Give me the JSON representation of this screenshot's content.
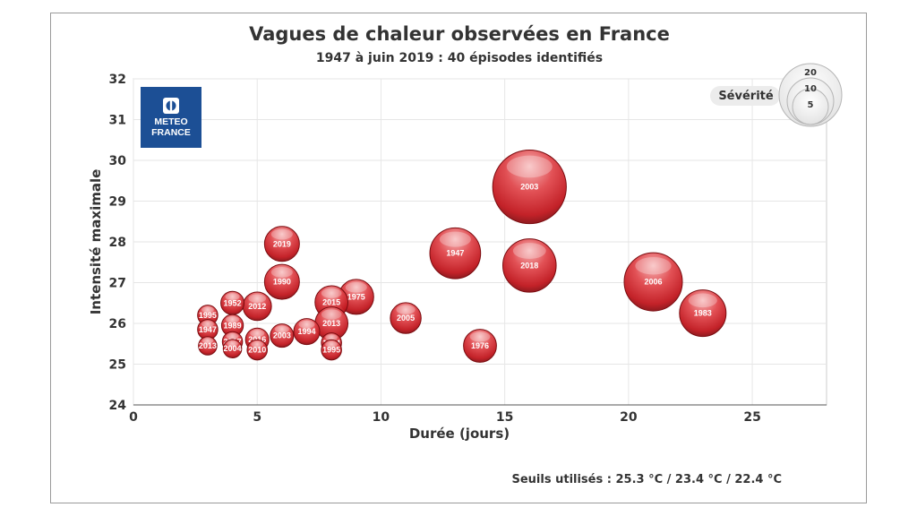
{
  "chart_data": {
    "type": "bubble",
    "title": "Vagues de chaleur observées en France",
    "subtitle": "1947 à juin 2019 : 40 épisodes identifiés",
    "xlabel": "Durée (jours)",
    "ylabel": "Intensité maximale",
    "xlim": [
      0,
      28
    ],
    "ylim": [
      24,
      32
    ],
    "xticks": [
      0,
      5,
      10,
      15,
      20,
      25
    ],
    "yticks": [
      24,
      25,
      26,
      27,
      28,
      29,
      30,
      31,
      32
    ],
    "grid": true,
    "legend": {
      "title": "Sévérité",
      "sizes": [
        20,
        10,
        5
      ],
      "placement": "top-right"
    },
    "footnote": "Seuils utilisés : 25.3 °C / 23.4 °C / 22.4 °C",
    "logo_text": [
      "METEO",
      "FRANCE"
    ],
    "colors": {
      "bubble": "#d42a30",
      "bubble_light": "#f29a9c",
      "bubble_dark": "#8a0f14",
      "logo_bg": "#1c4f95"
    },
    "points": [
      {
        "label": "2003",
        "x": 16,
        "y": 29.35,
        "size": 40
      },
      {
        "label": "2006",
        "x": 21,
        "y": 27.02,
        "size": 25
      },
      {
        "label": "1947",
        "x": 13,
        "y": 27.72,
        "size": 19
      },
      {
        "label": "2018",
        "x": 16,
        "y": 27.42,
        "size": 21
      },
      {
        "label": "1983",
        "x": 23,
        "y": 26.25,
        "size": 16
      },
      {
        "label": "2019",
        "x": 6,
        "y": 27.95,
        "size": 9
      },
      {
        "label": "1990",
        "x": 6,
        "y": 27.02,
        "size": 9
      },
      {
        "label": "1975",
        "x": 9,
        "y": 26.65,
        "size": 9
      },
      {
        "label": "2005",
        "x": 11,
        "y": 26.13,
        "size": 7
      },
      {
        "label": "1976",
        "x": 14,
        "y": 25.45,
        "size": 8
      },
      {
        "label": "2012",
        "x": 5,
        "y": 26.42,
        "size": 6
      },
      {
        "label": "2015",
        "x": 8,
        "y": 26.52,
        "size": 8
      },
      {
        "label": "2013",
        "x": 8,
        "y": 26.0,
        "size": 8
      },
      {
        "label": "1952",
        "x": 4,
        "y": 26.5,
        "size": 4
      },
      {
        "label": "1995",
        "x": 3,
        "y": 26.2,
        "size": 3
      },
      {
        "label": "1989",
        "x": 4,
        "y": 25.95,
        "size": 3.5
      },
      {
        "label": "1947",
        "x": 3,
        "y": 25.85,
        "size": 3
      },
      {
        "label": "2003",
        "x": 6,
        "y": 25.7,
        "size": 4
      },
      {
        "label": "1994",
        "x": 7,
        "y": 25.8,
        "size": 5
      },
      {
        "label": "2016",
        "x": 5,
        "y": 25.6,
        "size": 4
      },
      {
        "label": "2017",
        "x": 4,
        "y": 25.55,
        "size": 3
      },
      {
        "label": "2013",
        "x": 3,
        "y": 25.45,
        "size": 2.5
      },
      {
        "label": "2004",
        "x": 4,
        "y": 25.38,
        "size": 2.5
      },
      {
        "label": "2010",
        "x": 5,
        "y": 25.35,
        "size": 3
      },
      {
        "label": "1994",
        "x": 8,
        "y": 25.52,
        "size": 3
      },
      {
        "label": "1995",
        "x": 8,
        "y": 25.35,
        "size": 3
      }
    ]
  }
}
